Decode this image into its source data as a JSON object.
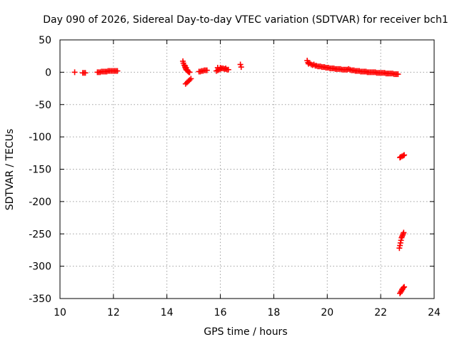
{
  "chart_data": {
    "type": "scatter",
    "title": "Day 090 of 2026, Sidereal Day-to-day VTEC variation (SDTVAR) for receiver bch1",
    "xlabel": "GPS time / hours",
    "ylabel": "SDTVAR / TECUs",
    "xlim": [
      10,
      24
    ],
    "ylim": [
      -350,
      50
    ],
    "xticks": [
      10,
      12,
      14,
      16,
      18,
      20,
      22,
      24
    ],
    "yticks": [
      50,
      0,
      -50,
      -100,
      -150,
      -200,
      -250,
      -300,
      -350
    ],
    "grid": true,
    "marker": "plus",
    "series": [
      {
        "name": "bch1",
        "color": "#ff0000",
        "x": [
          10.55,
          10.85,
          10.9,
          10.95,
          11.4,
          11.45,
          11.5,
          11.55,
          11.6,
          11.65,
          11.7,
          11.75,
          11.8,
          11.85,
          11.9,
          11.95,
          12.0,
          12.05,
          12.1,
          12.15,
          14.6,
          14.62,
          14.65,
          14.68,
          14.7,
          14.72,
          14.75,
          14.78,
          14.8,
          14.83,
          14.85,
          14.7,
          14.75,
          14.8,
          14.85,
          14.9,
          14.68,
          14.72,
          15.2,
          15.25,
          15.3,
          15.35,
          15.4,
          15.45,
          15.5,
          15.85,
          15.9,
          15.95,
          16.0,
          16.05,
          16.1,
          16.15,
          16.2,
          16.25,
          16.3,
          15.9,
          16.0,
          16.1,
          16.2,
          16.75,
          16.78,
          19.25,
          19.28,
          19.3,
          19.35,
          19.4,
          19.45,
          19.5,
          19.55,
          19.6,
          19.65,
          19.7,
          19.75,
          19.8,
          19.85,
          19.9,
          19.95,
          20.0,
          20.05,
          20.1,
          20.15,
          20.2,
          20.25,
          20.3,
          20.35,
          20.4,
          20.45,
          20.5,
          20.55,
          20.6,
          20.65,
          20.7,
          20.75,
          20.8,
          20.85,
          20.9,
          20.95,
          21.0,
          21.05,
          21.1,
          21.15,
          21.2,
          21.25,
          21.3,
          21.35,
          21.4,
          21.45,
          21.5,
          21.55,
          21.6,
          21.65,
          21.7,
          21.75,
          21.8,
          21.85,
          21.9,
          21.95,
          22.0,
          22.05,
          22.1,
          22.15,
          22.2,
          22.25,
          22.3,
          22.35,
          22.4,
          22.45,
          22.5,
          22.55,
          22.6,
          22.65,
          22.72,
          22.75,
          22.8,
          22.85,
          22.88,
          22.7,
          22.72,
          22.74,
          22.76,
          22.78,
          22.8,
          22.82,
          22.84,
          22.86,
          22.72,
          22.75,
          22.78,
          22.8,
          22.82,
          22.85,
          22.88
        ],
        "y": [
          0,
          -1,
          -1,
          -1,
          0,
          0,
          0,
          1,
          1,
          1,
          1,
          1,
          2,
          2,
          2,
          2,
          2,
          2,
          2,
          2,
          17,
          14,
          11,
          8,
          6,
          4,
          3,
          2,
          1,
          0,
          0,
          -18,
          -16,
          -14,
          -12,
          -10,
          10,
          7,
          1,
          1,
          2,
          2,
          3,
          3,
          3,
          2,
          3,
          4,
          5,
          6,
          6,
          5,
          5,
          4,
          4,
          7,
          7,
          6,
          6,
          12,
          8,
          18,
          15,
          13,
          14,
          12,
          11,
          12,
          10,
          10,
          9,
          9,
          9,
          8,
          8,
          8,
          7,
          7,
          7,
          6,
          6,
          6,
          6,
          5,
          5,
          5,
          5,
          5,
          4,
          4,
          4,
          4,
          4,
          5,
          4,
          3,
          3,
          3,
          2,
          2,
          2,
          2,
          1,
          1,
          1,
          1,
          1,
          0,
          0,
          0,
          0,
          0,
          0,
          0,
          -1,
          -1,
          -1,
          -1,
          -1,
          -1,
          -1,
          -2,
          -2,
          -2,
          -2,
          -2,
          -2,
          -3,
          -3,
          -3,
          -3,
          -132,
          -131,
          -130,
          -129,
          -128,
          -272,
          -268,
          -264,
          -260,
          -256,
          -254,
          -252,
          -250,
          -248,
          -342,
          -340,
          -338,
          -336,
          -335,
          -333,
          -332
        ]
      }
    ]
  }
}
